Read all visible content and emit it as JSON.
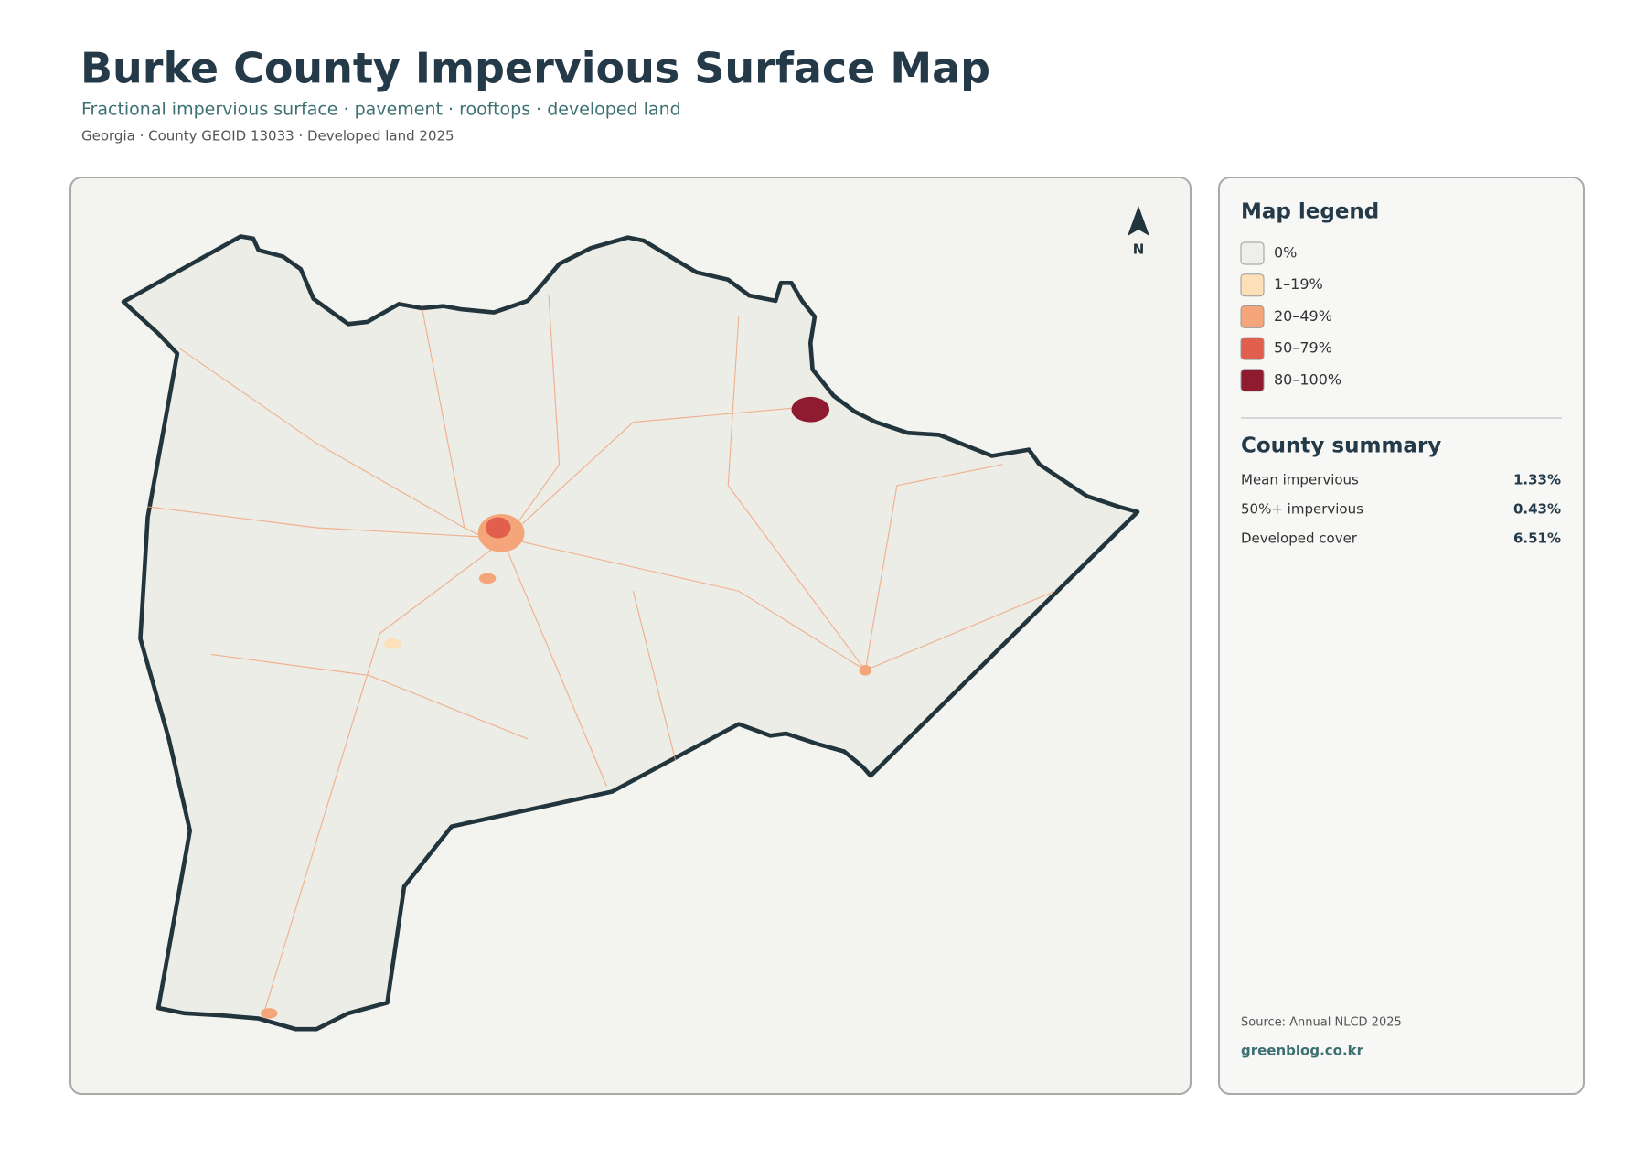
{
  "header": {
    "title": "Burke County Impervious Surface Map",
    "subtitle": "Fractional impervious surface · pavement · rooftops · developed land",
    "meta": "Georgia · County GEOID 13033 · Developed land 2025"
  },
  "map": {
    "north_label": "N"
  },
  "legend": {
    "title": "Map legend",
    "items": [
      {
        "label": "0%",
        "color": "#eeeeea"
      },
      {
        "label": "1–19%",
        "color": "#fde0b8"
      },
      {
        "label": "20–49%",
        "color": "#f4a67a"
      },
      {
        "label": "50–79%",
        "color": "#e0604d"
      },
      {
        "label": "80–100%",
        "color": "#8e1b2f"
      }
    ]
  },
  "summary": {
    "title": "County summary",
    "rows": [
      {
        "label": "Mean impervious",
        "value": "1.33%"
      },
      {
        "label": "50%+ impervious",
        "value": "0.43%"
      },
      {
        "label": "Developed cover",
        "value": "6.51%"
      }
    ]
  },
  "footer": {
    "source": "Source: Annual NLCD 2025",
    "credit": "greenblog.co.kr"
  }
}
